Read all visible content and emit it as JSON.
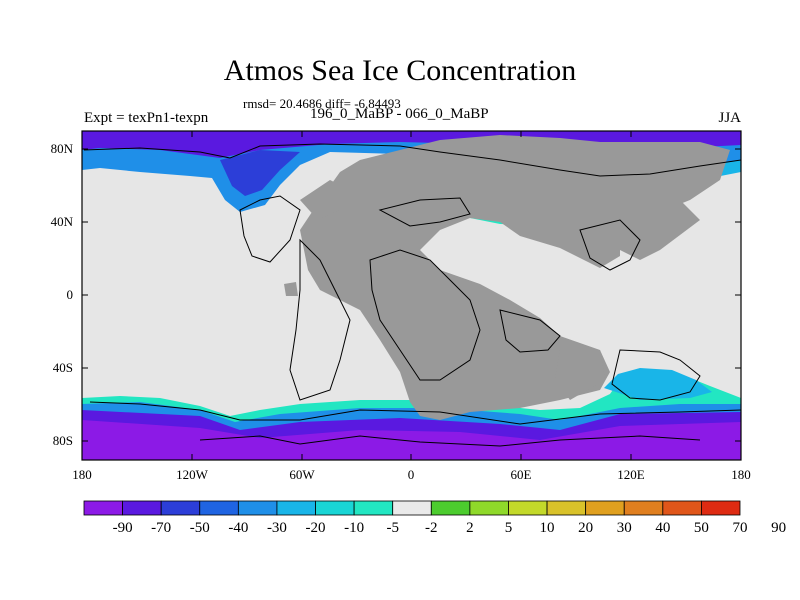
{
  "title": "Atmos Sea Ice Concentration",
  "stats": "rmsd= 20.4686 diff= -6.84493",
  "experiment": "Expt = texPn1-texpn",
  "comparison": "196_0_MaBP - 066_0_MaBP",
  "season": "JJA",
  "lat_labels": [
    "80N",
    "40N",
    "0",
    "40S",
    "80S"
  ],
  "lon_labels": [
    "180",
    "120W",
    "60W",
    "0",
    "60E",
    "120E",
    "180"
  ],
  "colorbar": {
    "colors": [
      "#8c1ae6",
      "#5a19e0",
      "#2c3ed8",
      "#1f64e2",
      "#1f8fe8",
      "#19b5e8",
      "#19d5d5",
      "#22e6c2",
      "#eaeaea",
      "#4ccc2e",
      "#8fd92a",
      "#c3d92a",
      "#d9c22a",
      "#e0a01f",
      "#e07f1f",
      "#e0561a",
      "#de2b12"
    ],
    "labels": [
      "-90",
      "-70",
      "-50",
      "-40",
      "-30",
      "-20",
      "-10",
      "-5",
      "-2",
      "2",
      "5",
      "10",
      "20",
      "30",
      "40",
      "50",
      "70",
      "90"
    ]
  },
  "colors": {
    "land": "#999999",
    "ocean_nochange": "#e6e6e6",
    "coast": "#000000"
  }
}
